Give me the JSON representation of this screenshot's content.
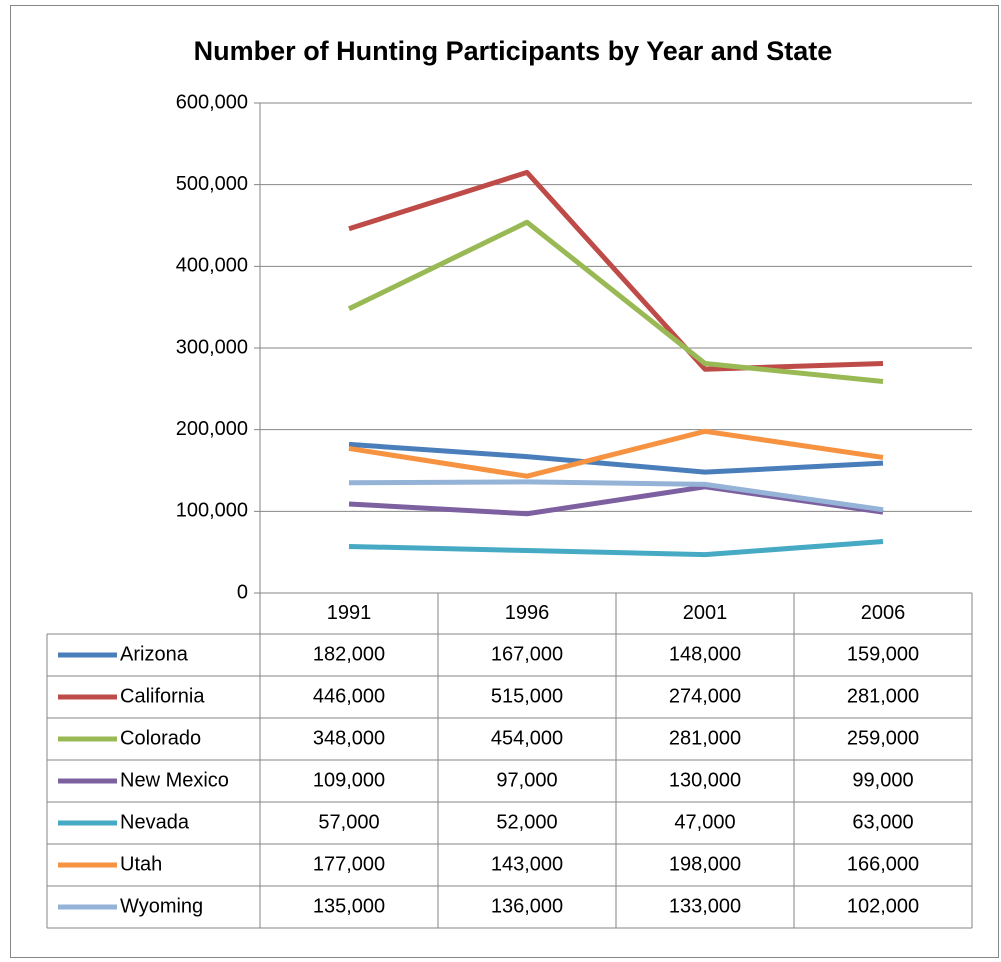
{
  "chart_data": {
    "type": "line",
    "title": "Number of Hunting Participants by Year and State",
    "categories": [
      "1991",
      "1996",
      "2001",
      "2006"
    ],
    "series": [
      {
        "name": "Arizona",
        "color": "#4a7ebb",
        "values": [
          182000,
          167000,
          148000,
          159000
        ],
        "value_labels": [
          "182,000",
          "167,000",
          "148,000",
          "159,000"
        ]
      },
      {
        "name": "California",
        "color": "#be4b48",
        "values": [
          446000,
          515000,
          274000,
          281000
        ],
        "value_labels": [
          "446,000",
          "515,000",
          "274,000",
          "281,000"
        ]
      },
      {
        "name": "Colorado",
        "color": "#98b954",
        "values": [
          348000,
          454000,
          281000,
          259000
        ],
        "value_labels": [
          "348,000",
          "454,000",
          "281,000",
          "259,000"
        ]
      },
      {
        "name": "New Mexico",
        "color": "#7d60a0",
        "values": [
          109000,
          97000,
          130000,
          99000
        ],
        "value_labels": [
          "109,000",
          "97,000",
          "130,000",
          "99,000"
        ]
      },
      {
        "name": "Nevada",
        "color": "#46aac5",
        "values": [
          57000,
          52000,
          47000,
          63000
        ],
        "value_labels": [
          "57,000",
          "52,000",
          "47,000",
          "63,000"
        ]
      },
      {
        "name": "Utah",
        "color": "#f69240",
        "values": [
          177000,
          143000,
          198000,
          166000
        ],
        "value_labels": [
          "177,000",
          "143,000",
          "198,000",
          "166,000"
        ]
      },
      {
        "name": "Wyoming",
        "color": "#95b3d7",
        "values": [
          135000,
          136000,
          133000,
          102000
        ],
        "value_labels": [
          "135,000",
          "136,000",
          "133,000",
          "102,000"
        ]
      }
    ],
    "ylim": [
      0,
      600000
    ],
    "yticks": [
      0,
      {
        "value": 100000,
        "label": "100,000"
      },
      {
        "value": 200000,
        "label": "200,000"
      },
      {
        "value": 300000,
        "label": "300,000"
      },
      {
        "value": 400000,
        "label": "400,000"
      },
      {
        "value": 500000,
        "label": "500,000"
      },
      {
        "value": 600000,
        "label": "600,000"
      }
    ],
    "grid": true
  }
}
